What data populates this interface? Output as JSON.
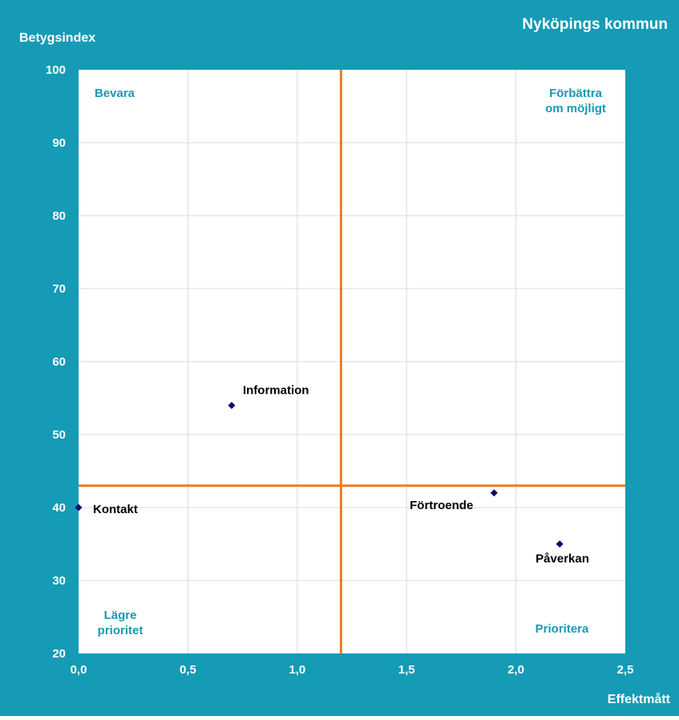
{
  "chart_data": {
    "type": "scatter",
    "title": "Nyköpings kommun",
    "xlabel": "Effektmått",
    "ylabel": "Betygsindex",
    "xlim": [
      0,
      2.5
    ],
    "ylim": [
      20,
      100
    ],
    "x_ticks": [
      0,
      0.5,
      1.0,
      1.5,
      2.0,
      2.5
    ],
    "x_tick_labels": [
      "0,0",
      "0,5",
      "1,0",
      "1,5",
      "2,0",
      "2,5"
    ],
    "y_ticks": [
      20,
      30,
      40,
      50,
      60,
      70,
      80,
      90,
      100
    ],
    "y_tick_labels": [
      "20",
      "30",
      "40",
      "50",
      "60",
      "70",
      "80",
      "90",
      "100"
    ],
    "grid": true,
    "points": [
      {
        "label": "Kontakt",
        "x": 0.0,
        "y": 40
      },
      {
        "label": "Information",
        "x": 0.7,
        "y": 54
      },
      {
        "label": "Förtroende",
        "x": 1.9,
        "y": 42
      },
      {
        "label": "Påverkan",
        "x": 2.2,
        "y": 35
      }
    ],
    "reference_lines": {
      "x": 1.2,
      "y": 43
    },
    "quadrant_labels": {
      "top_left": [
        "Bevara"
      ],
      "top_right": [
        "Förbättra",
        "om möjligt"
      ],
      "bottom_left": [
        "Lägre",
        "prioritet"
      ],
      "bottom_right": [
        "Prioritera"
      ]
    },
    "colors": {
      "frame": "#159bb5",
      "plot_background": "#ffffff",
      "grid": "#d9d9ee",
      "reference_line": "#f07a22",
      "marker": "#0b0b72",
      "point_label": "#000000",
      "quadrant_label": "#1899b5",
      "axis_text": "#ffffff"
    }
  }
}
